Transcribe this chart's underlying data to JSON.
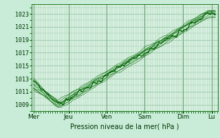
{
  "bg_color": "#c8ecd8",
  "plot_bg_color": "#d8f0e0",
  "grid_color": "#88bb99",
  "line_color": "#006600",
  "xlabel": "Pression niveau de la mer( hPa )",
  "ylim": [
    1008.0,
    1024.5
  ],
  "yticks": [
    1009,
    1011,
    1013,
    1015,
    1017,
    1019,
    1021,
    1023
  ],
  "day_labels": [
    "Mer",
    "Jeu",
    "Ven",
    "Sam",
    "Dim",
    "Lu"
  ],
  "day_positions": [
    0,
    44,
    92,
    140,
    188,
    224
  ],
  "total_points": 230,
  "n_lines": 9
}
